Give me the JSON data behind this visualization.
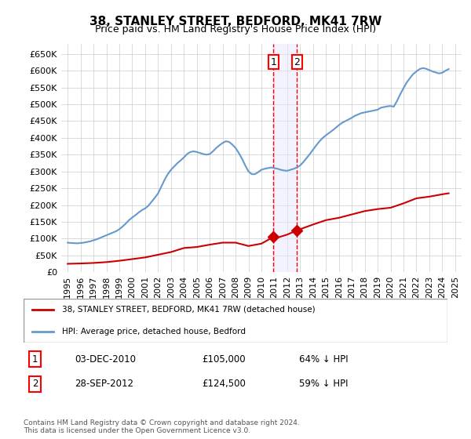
{
  "title": "38, STANLEY STREET, BEDFORD, MK41 7RW",
  "subtitle": "Price paid vs. HM Land Registry's House Price Index (HPI)",
  "ylabel_ticks": [
    "£0",
    "£50K",
    "£100K",
    "£150K",
    "£200K",
    "£250K",
    "£300K",
    "£350K",
    "£400K",
    "£450K",
    "£500K",
    "£550K",
    "£600K",
    "£650K"
  ],
  "ylim": [
    0,
    680000
  ],
  "yticks": [
    0,
    50000,
    100000,
    150000,
    200000,
    250000,
    300000,
    350000,
    400000,
    450000,
    500000,
    550000,
    600000,
    650000
  ],
  "line_color_hpi": "#6699cc",
  "line_color_property": "#cc0000",
  "sale1_date": 2010.92,
  "sale1_price": 105000,
  "sale1_label": "1",
  "sale2_date": 2012.75,
  "sale2_price": 124500,
  "sale2_label": "2",
  "legend_property": "38, STANLEY STREET, BEDFORD, MK41 7RW (detached house)",
  "legend_hpi": "HPI: Average price, detached house, Bedford",
  "table_row1": [
    "1",
    "03-DEC-2010",
    "£105,000",
    "64% ↓ HPI"
  ],
  "table_row2": [
    "2",
    "28-SEP-2012",
    "£124,500",
    "59% ↓ HPI"
  ],
  "footnote": "Contains HM Land Registry data © Crown copyright and database right 2024.\nThis data is licensed under the Open Government Licence v3.0.",
  "hpi_data": {
    "years": [
      1995.0,
      1995.25,
      1995.5,
      1995.75,
      1996.0,
      1996.25,
      1996.5,
      1996.75,
      1997.0,
      1997.25,
      1997.5,
      1997.75,
      1998.0,
      1998.25,
      1998.5,
      1998.75,
      1999.0,
      1999.25,
      1999.5,
      1999.75,
      2000.0,
      2000.25,
      2000.5,
      2000.75,
      2001.0,
      2001.25,
      2001.5,
      2001.75,
      2002.0,
      2002.25,
      2002.5,
      2002.75,
      2003.0,
      2003.25,
      2003.5,
      2003.75,
      2004.0,
      2004.25,
      2004.5,
      2004.75,
      2005.0,
      2005.25,
      2005.5,
      2005.75,
      2006.0,
      2006.25,
      2006.5,
      2006.75,
      2007.0,
      2007.25,
      2007.5,
      2007.75,
      2008.0,
      2008.25,
      2008.5,
      2008.75,
      2009.0,
      2009.25,
      2009.5,
      2009.75,
      2010.0,
      2010.25,
      2010.5,
      2010.75,
      2011.0,
      2011.25,
      2011.5,
      2011.75,
      2012.0,
      2012.25,
      2012.5,
      2012.75,
      2013.0,
      2013.25,
      2013.5,
      2013.75,
      2014.0,
      2014.25,
      2014.5,
      2014.75,
      2015.0,
      2015.25,
      2015.5,
      2015.75,
      2016.0,
      2016.25,
      2016.5,
      2016.75,
      2017.0,
      2017.25,
      2017.5,
      2017.75,
      2018.0,
      2018.25,
      2018.5,
      2018.75,
      2019.0,
      2019.25,
      2019.5,
      2019.75,
      2020.0,
      2020.25,
      2020.5,
      2020.75,
      2021.0,
      2021.25,
      2021.5,
      2021.75,
      2022.0,
      2022.25,
      2022.5,
      2022.75,
      2023.0,
      2023.25,
      2023.5,
      2023.75,
      2024.0,
      2024.25,
      2024.5
    ],
    "values": [
      88000,
      87000,
      86500,
      86000,
      87000,
      88000,
      90000,
      92000,
      95000,
      98000,
      102000,
      106000,
      110000,
      114000,
      118000,
      122000,
      128000,
      136000,
      145000,
      155000,
      163000,
      170000,
      178000,
      185000,
      190000,
      198000,
      210000,
      222000,
      235000,
      255000,
      275000,
      292000,
      305000,
      315000,
      325000,
      333000,
      342000,
      352000,
      358000,
      360000,
      358000,
      355000,
      352000,
      350000,
      352000,
      360000,
      370000,
      378000,
      385000,
      390000,
      388000,
      380000,
      370000,
      355000,
      338000,
      318000,
      300000,
      292000,
      292000,
      298000,
      305000,
      308000,
      310000,
      312000,
      310000,
      308000,
      305000,
      303000,
      302000,
      305000,
      308000,
      312000,
      318000,
      328000,
      340000,
      352000,
      365000,
      378000,
      390000,
      400000,
      408000,
      415000,
      422000,
      430000,
      438000,
      445000,
      450000,
      455000,
      460000,
      466000,
      470000,
      474000,
      476000,
      478000,
      480000,
      482000,
      484000,
      490000,
      492000,
      494000,
      495000,
      493000,
      510000,
      530000,
      548000,
      565000,
      578000,
      590000,
      598000,
      605000,
      608000,
      606000,
      602000,
      598000,
      595000,
      592000,
      594000,
      600000,
      605000
    ]
  },
  "property_data": {
    "years": [
      1995.0,
      1996.0,
      1997.0,
      1998.0,
      1999.0,
      2000.0,
      2001.0,
      2002.0,
      2003.0,
      2004.0,
      2005.0,
      2006.0,
      2007.0,
      2008.0,
      2009.0,
      2010.0,
      2010.92,
      2011.0,
      2012.0,
      2012.75,
      2013.0,
      2014.0,
      2015.0,
      2016.0,
      2017.0,
      2018.0,
      2019.0,
      2020.0,
      2021.0,
      2022.0,
      2023.0,
      2024.0,
      2024.5
    ],
    "values": [
      25000,
      26000,
      27500,
      30000,
      34000,
      39000,
      44000,
      52000,
      60000,
      72000,
      75000,
      82000,
      88000,
      88000,
      78000,
      85000,
      105000,
      100000,
      112000,
      124500,
      128000,
      142000,
      155000,
      162000,
      172000,
      182000,
      188000,
      192000,
      205000,
      220000,
      225000,
      232000,
      235000
    ]
  }
}
